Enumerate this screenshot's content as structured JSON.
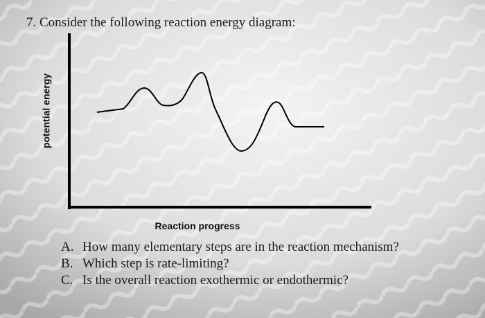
{
  "header": {
    "title": "7. Consider the following reaction energy diagram:"
  },
  "diagram": {
    "y_label": "potential energy",
    "x_label": "Reaction progress"
  },
  "questions": [
    {
      "letter": "A.",
      "text": "How many elementary steps are in the reaction mechanism?"
    },
    {
      "letter": "B.",
      "text": "Which step is rate-limiting?"
    },
    {
      "letter": "C.",
      "text": "Is the overall reaction exothermic or endothermic?"
    }
  ]
}
